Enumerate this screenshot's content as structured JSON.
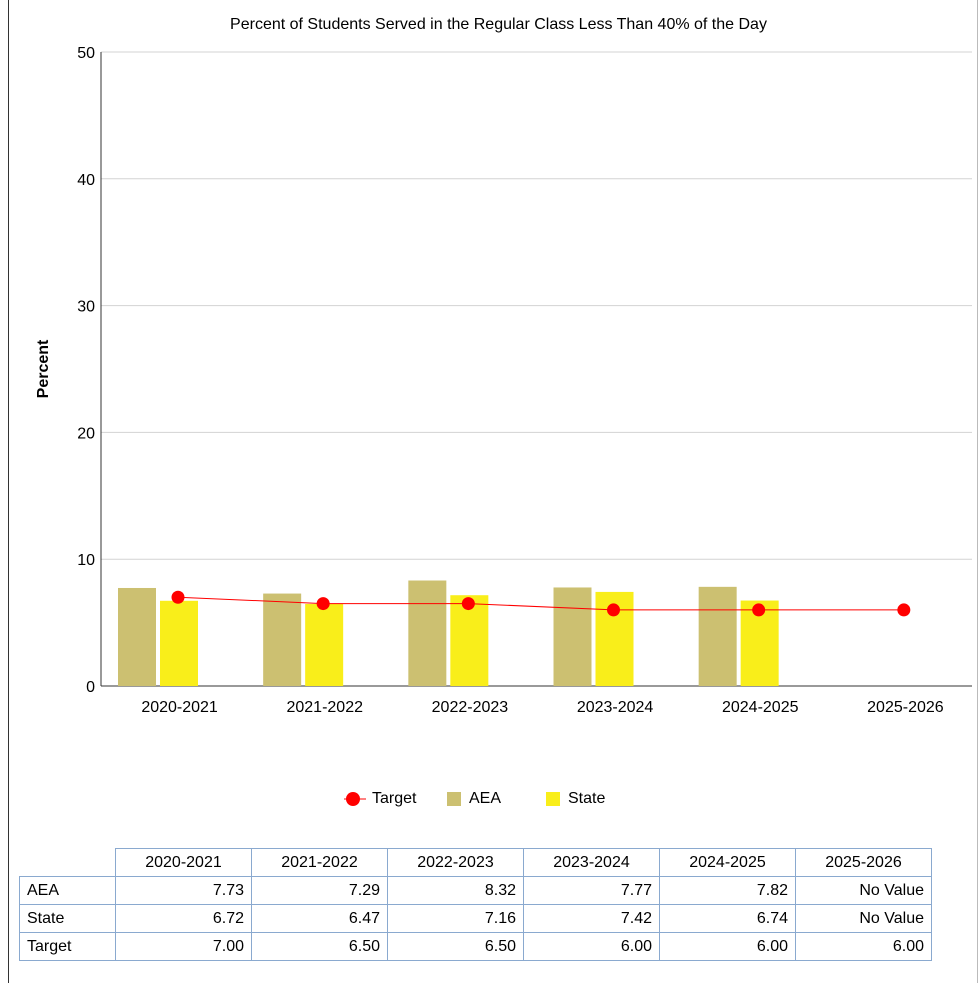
{
  "chart_data": {
    "type": "bar",
    "title": "Percent of Students Served in the Regular Class Less Than 40% of the Day",
    "ylabel": "Percent",
    "xlabel": "",
    "ylim": [
      0,
      50
    ],
    "yticks": [
      "0",
      "10",
      "20",
      "30",
      "40",
      "50"
    ],
    "categories": [
      "2020-2021",
      "2021-2022",
      "2022-2023",
      "2023-2024",
      "2024-2025",
      "2025-2026"
    ],
    "series": [
      {
        "name": "AEA",
        "type": "bar",
        "color": "#ccc071",
        "values": [
          7.73,
          7.29,
          8.32,
          7.77,
          7.82,
          null
        ]
      },
      {
        "name": "State",
        "type": "bar",
        "color": "#f9ee1a",
        "values": [
          6.72,
          6.47,
          7.16,
          7.42,
          6.74,
          null
        ]
      },
      {
        "name": "Target",
        "type": "line",
        "color": "#ff0000",
        "values": [
          7.0,
          6.5,
          6.5,
          6.0,
          6.0,
          6.0
        ]
      }
    ],
    "grid": true,
    "legend_position": "bottom"
  },
  "legend": [
    {
      "label": "Target",
      "color": "#ff0000"
    },
    {
      "label": "AEA",
      "color": "#ccc071"
    },
    {
      "label": "State",
      "color": "#f9ee1a"
    }
  ],
  "table": {
    "columns": [
      "2020-2021",
      "2021-2022",
      "2022-2023",
      "2023-2024",
      "2024-2025",
      "2025-2026"
    ],
    "rows": [
      {
        "label": "AEA",
        "cells": [
          "7.73",
          "7.29",
          "8.32",
          "7.77",
          "7.82",
          "No Value"
        ]
      },
      {
        "label": "State",
        "cells": [
          "6.72",
          "6.47",
          "7.16",
          "7.42",
          "6.74",
          "No Value"
        ]
      },
      {
        "label": "Target",
        "cells": [
          "7.00",
          "6.50",
          "6.50",
          "6.00",
          "6.00",
          "6.00"
        ]
      }
    ]
  }
}
